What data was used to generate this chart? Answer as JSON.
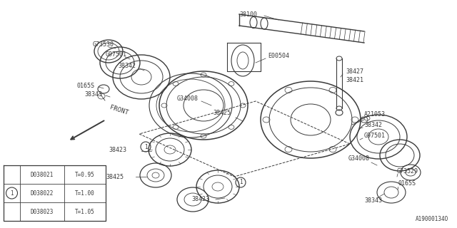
{
  "background_color": "#f5f5f5",
  "part_number_bottom_right": "A19000134O",
  "legend_table_rows": [
    {
      "circle": false,
      "part": "D038021",
      "thickness": "T=0.95"
    },
    {
      "circle": true,
      "part": "D038022",
      "thickness": "T=1.00"
    },
    {
      "circle": false,
      "part": "D038023",
      "thickness": "T=1.05"
    }
  ],
  "line_color": "#3a3a3a",
  "text_color": "#3a3a3a",
  "bg": "#f5f5f5"
}
